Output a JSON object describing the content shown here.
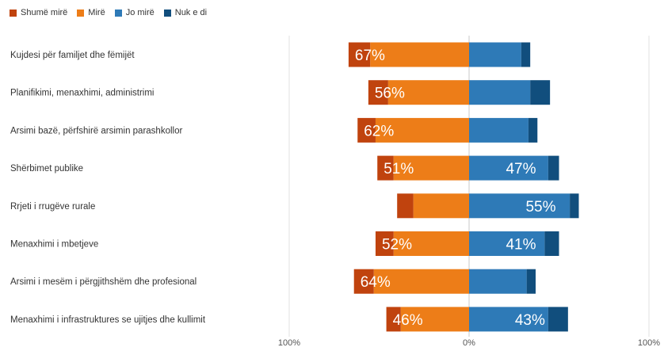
{
  "chart_data": {
    "type": "bar",
    "orientation": "horizontal",
    "stacking": "diverging",
    "legend_placement": "top-left",
    "grid": true,
    "xlim": [
      -100,
      100
    ],
    "x_tick_labels": [
      "100%",
      "0%",
      "100%"
    ],
    "colors": {
      "shume_mire": "#c0430e",
      "mire": "#ed7d18",
      "jo_mire": "#2e7ab7",
      "nuk_e_di": "#114e7d"
    },
    "series": [
      {
        "key": "shume_mire",
        "name": "Shumë mirë",
        "side": "left"
      },
      {
        "key": "mire",
        "name": "Mirë",
        "side": "left"
      },
      {
        "key": "jo_mire",
        "name": "Jo mirë",
        "side": "right"
      },
      {
        "key": "nuk_e_di",
        "name": "Nuk e di",
        "side": "right"
      }
    ],
    "categories": [
      "Kujdesi për familjet dhe fëmijët",
      "Planifikimi, menaxhimi, administrimi",
      "Arsimi bazë, përfshirë arsimin parashkollor",
      "Shërbimet publike",
      "Rrjeti i rrugëve rurale",
      "Menaxhimi i mbetjeve",
      "Arsimi i mesëm i përgjithshëm dhe profesional",
      "Menaxhimi i infrastruktures se ujitjes dhe kullimit"
    ],
    "values": {
      "shume_mire": [
        12,
        11,
        10,
        9,
        9,
        10,
        11,
        8
      ],
      "mire": [
        55,
        45,
        52,
        42,
        31,
        42,
        53,
        38
      ],
      "jo_mire": [
        29,
        34,
        33,
        44,
        56,
        42,
        32,
        44
      ],
      "nuk_e_di": [
        5,
        11,
        5,
        6,
        5,
        8,
        5,
        11
      ]
    },
    "left_labels": [
      "67%",
      "56%",
      "62%",
      "51%",
      "",
      "52%",
      "64%",
      "46%"
    ],
    "right_labels": [
      "",
      "",
      "",
      "47%",
      "55%",
      "41%",
      "",
      "43%"
    ]
  }
}
